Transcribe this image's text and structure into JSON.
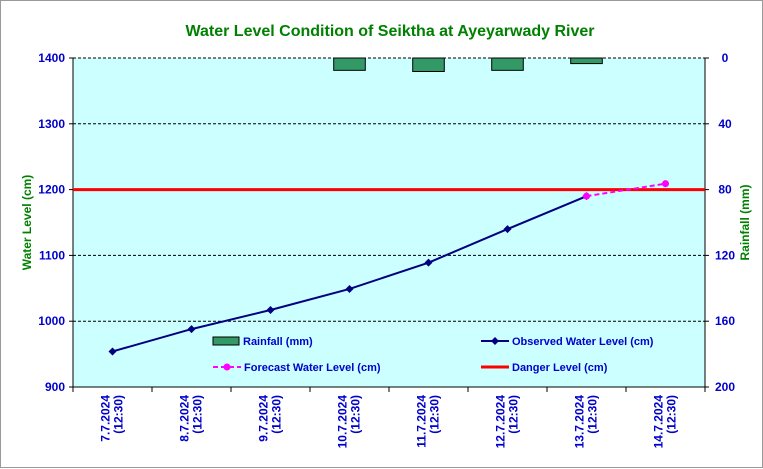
{
  "chart_data": {
    "type": "line",
    "title": "Water Level Condition of Seiktha at Ayeyarwady River",
    "ylabel": "Water Level (cm)",
    "y2label": "Rainfall (mm)",
    "ylim": [
      900,
      1400
    ],
    "yticks": [
      900,
      1000,
      1100,
      1200,
      1300,
      1400
    ],
    "y2lim": [
      0,
      200
    ],
    "y2ticks": [
      0,
      40,
      80,
      120,
      160,
      200
    ],
    "y2_inverted": true,
    "grid": true,
    "categories": [
      {
        "date": "7.7.2024",
        "time": "(12:30)"
      },
      {
        "date": "8.7.2024",
        "time": "(12:30)"
      },
      {
        "date": "9.7.2024",
        "time": "(12:30)"
      },
      {
        "date": "10.7.2024",
        "time": "(12:30)"
      },
      {
        "date": "11.7.2024",
        "time": "(12:30)"
      },
      {
        "date": "12.7.2024",
        "time": "(12:30)"
      },
      {
        "date": "13.7.2024",
        "time": "(12:30)"
      },
      {
        "date": "14.7.2024",
        "time": "(12:30)"
      }
    ],
    "series": [
      {
        "name": "Rainfall (mm)",
        "kind": "bar",
        "axis": "right",
        "color": "#339966",
        "values": [
          null,
          null,
          null,
          7.5,
          8.2,
          7.5,
          3.4,
          null
        ]
      },
      {
        "name": "Observed Water Level (cm)",
        "kind": "line",
        "axis": "left",
        "color": "#000080",
        "values": [
          954,
          988,
          1017,
          1049,
          1089,
          1140,
          1190,
          null
        ]
      },
      {
        "name": "Forecast Water Level (cm)",
        "kind": "dashed-line",
        "axis": "left",
        "color": "#ff00ff",
        "values": [
          null,
          null,
          null,
          null,
          null,
          null,
          1190,
          1209
        ]
      },
      {
        "name": "Danger Level (cm)",
        "kind": "hline",
        "axis": "left",
        "color": "#ff0000",
        "value": 1200
      }
    ],
    "colors": {
      "plot_bg": "#ccffff",
      "title": "#008000",
      "tick": "#0000cc",
      "axis_title": "#008000"
    }
  }
}
